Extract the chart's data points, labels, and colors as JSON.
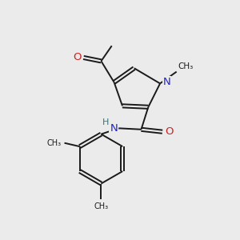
{
  "background_color": "#ebebeb",
  "bond_color": "#1a1a1a",
  "n_color": "#2222cc",
  "o_color": "#cc2222",
  "h_color": "#337777",
  "font_size": 8.5,
  "line_width": 1.4,
  "figsize": [
    3.0,
    3.0
  ],
  "dpi": 100,
  "xlim": [
    0,
    10
  ],
  "ylim": [
    0,
    10
  ]
}
